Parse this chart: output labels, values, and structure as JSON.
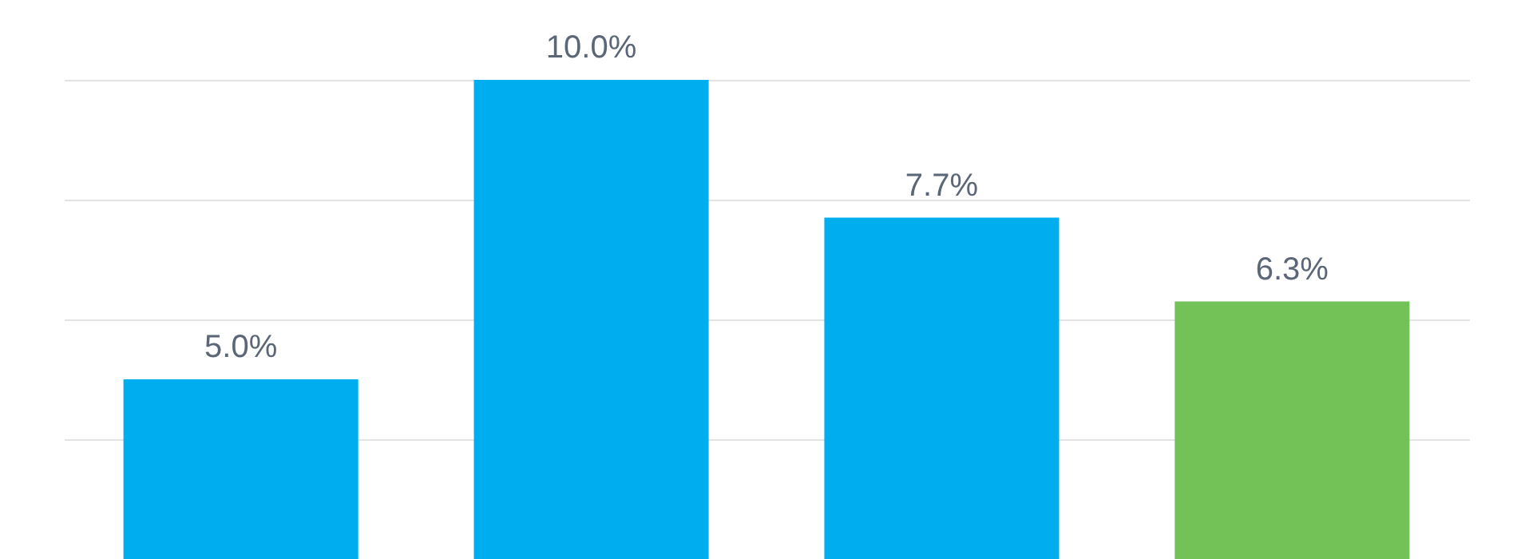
{
  "chart_data": {
    "type": "bar",
    "categories": [
      null,
      null,
      null,
      null
    ],
    "values": [
      5.0,
      10.0,
      7.7,
      6.3
    ],
    "colors": [
      "#00aeef",
      "#00aeef",
      "#00aeef",
      "#73c257"
    ],
    "value_labels": [
      "5.0%",
      "10.0%",
      "7.7%",
      "6.3%"
    ],
    "ylim": [
      2,
      10
    ],
    "yticks": [
      2,
      4,
      6,
      8,
      10
    ],
    "grid": "y",
    "tick_labels": false
  }
}
